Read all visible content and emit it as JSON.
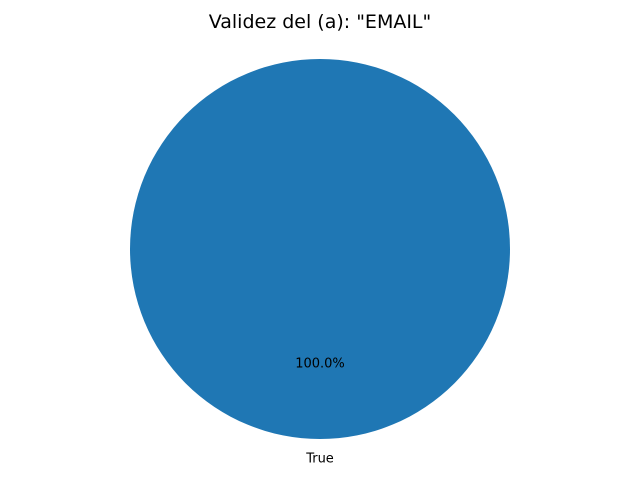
{
  "chart_data": {
    "type": "pie",
    "title": "Validez del (a): \"EMAIL\"",
    "categories": [
      "True"
    ],
    "values": [
      100
    ],
    "percent_labels": [
      "100.0%"
    ],
    "colors": [
      "#1f77b4"
    ],
    "legend": false
  }
}
